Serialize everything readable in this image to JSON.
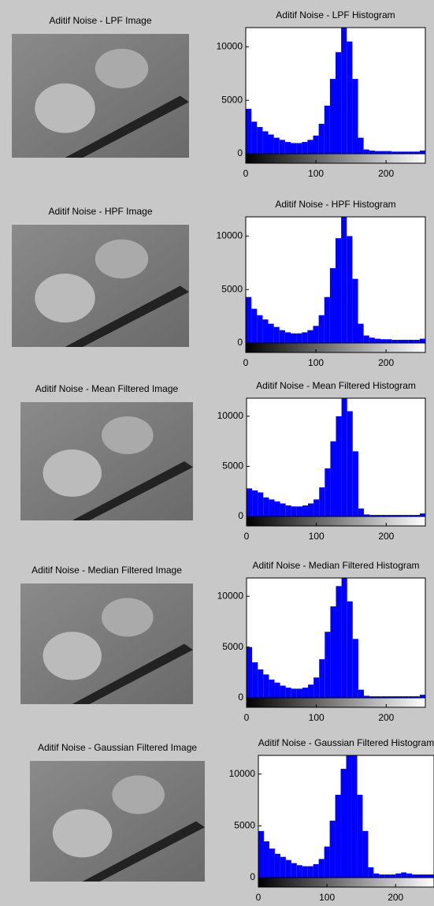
{
  "images": [
    {
      "title": "Aditif Noise - LPF Image"
    },
    {
      "title": "Aditif Noise - HPF Image"
    },
    {
      "title": "Aditif Noise - Mean Filtered Image"
    },
    {
      "title": "Aditif Noise - Median Filtered Image"
    },
    {
      "title": "Aditif Noise - Gaussian Filtered Image"
    }
  ],
  "chart_data": [
    {
      "type": "histogram",
      "title": "Aditif Noise - LPF Histogram",
      "color": "#0000ff",
      "bins": [
        0,
        8,
        16,
        24,
        32,
        40,
        48,
        56,
        64,
        72,
        80,
        88,
        96,
        104,
        112,
        120,
        128,
        136,
        144,
        152,
        160,
        168,
        176,
        184,
        192,
        200,
        208,
        216,
        224,
        232,
        240,
        248,
        256
      ],
      "values": [
        4200,
        3000,
        2500,
        2100,
        1800,
        1500,
        1300,
        1100,
        1000,
        1000,
        1100,
        1300,
        1700,
        2800,
        4500,
        7000,
        9500,
        11800,
        10500,
        7000,
        1500,
        400,
        300,
        250,
        250,
        250,
        200,
        200,
        200,
        200,
        200,
        300
      ],
      "xlim": [
        0,
        256
      ],
      "xticks": [
        0,
        100,
        200
      ],
      "ylim": [
        0,
        11800
      ],
      "yticks": [
        0,
        5000,
        10000
      ]
    },
    {
      "type": "histogram",
      "title": "Aditif Noise - HPF Histogram",
      "color": "#0000ff",
      "bins": [
        0,
        8,
        16,
        24,
        32,
        40,
        48,
        56,
        64,
        72,
        80,
        88,
        96,
        104,
        112,
        120,
        128,
        136,
        144,
        152,
        160,
        168,
        176,
        184,
        192,
        200,
        208,
        216,
        224,
        232,
        240,
        248,
        256
      ],
      "values": [
        4300,
        3200,
        2600,
        2200,
        1800,
        1500,
        1200,
        1000,
        900,
        900,
        1000,
        1200,
        1600,
        2600,
        4300,
        7000,
        9800,
        11800,
        10000,
        6000,
        1800,
        700,
        500,
        400,
        350,
        350,
        300,
        300,
        300,
        300,
        300,
        400
      ],
      "xlim": [
        0,
        256
      ],
      "xticks": [
        0,
        100,
        200
      ],
      "ylim": [
        0,
        11800
      ],
      "yticks": [
        0,
        5000,
        10000
      ]
    },
    {
      "type": "histogram",
      "title": "Aditif Noise - Mean Filtered Histogram",
      "color": "#0000ff",
      "bins": [
        0,
        8,
        16,
        24,
        32,
        40,
        48,
        56,
        64,
        72,
        80,
        88,
        96,
        104,
        112,
        120,
        128,
        136,
        144,
        152,
        160,
        168,
        176,
        184,
        192,
        200,
        208,
        216,
        224,
        232,
        240,
        248,
        256
      ],
      "values": [
        2800,
        2600,
        2400,
        1900,
        1700,
        1500,
        1300,
        1100,
        1000,
        1000,
        1100,
        1300,
        1700,
        2900,
        4800,
        7500,
        10000,
        11800,
        10500,
        6500,
        800,
        200,
        150,
        150,
        150,
        150,
        150,
        150,
        150,
        150,
        150,
        300
      ],
      "xlim": [
        0,
        256
      ],
      "xticks": [
        0,
        100,
        200
      ],
      "ylim": [
        0,
        11800
      ],
      "yticks": [
        0,
        5000,
        10000
      ]
    },
    {
      "type": "histogram",
      "title": "Aditif Noise - Median Filtered Histogram",
      "color": "#0000ff",
      "bins": [
        0,
        8,
        16,
        24,
        32,
        40,
        48,
        56,
        64,
        72,
        80,
        88,
        96,
        104,
        112,
        120,
        128,
        136,
        144,
        152,
        160,
        168,
        176,
        184,
        192,
        200,
        208,
        216,
        224,
        232,
        240,
        248,
        256
      ],
      "values": [
        5000,
        3500,
        2800,
        2300,
        1800,
        1500,
        1200,
        1000,
        900,
        900,
        1000,
        1300,
        2000,
        3800,
        6500,
        9000,
        11000,
        11800,
        9500,
        5800,
        800,
        200,
        150,
        150,
        150,
        150,
        150,
        150,
        150,
        150,
        150,
        300
      ],
      "xlim": [
        0,
        256
      ],
      "xticks": [
        0,
        100,
        200
      ],
      "ylim": [
        0,
        11800
      ],
      "yticks": [
        0,
        5000,
        10000
      ]
    },
    {
      "type": "histogram",
      "title": "Aditif Noise - Gaussian Filtered Histogram",
      "color": "#0000ff",
      "bins": [
        0,
        8,
        16,
        24,
        32,
        40,
        48,
        56,
        64,
        72,
        80,
        88,
        96,
        104,
        112,
        120,
        128,
        136,
        144,
        152,
        160,
        168,
        176,
        184,
        192,
        200,
        208,
        216,
        224,
        232,
        240,
        248,
        256
      ],
      "values": [
        4500,
        3500,
        2800,
        2300,
        2000,
        1700,
        1400,
        1200,
        1100,
        1100,
        1300,
        1800,
        3000,
        5500,
        8000,
        10500,
        11800,
        11800,
        8000,
        4500,
        1000,
        400,
        300,
        300,
        300,
        400,
        500,
        400,
        300,
        300,
        300,
        300
      ],
      "xlim": [
        0,
        256
      ],
      "xticks": [
        0,
        100,
        200
      ],
      "ylim": [
        0,
        11800
      ],
      "yticks": [
        0,
        5000,
        10000
      ]
    }
  ]
}
